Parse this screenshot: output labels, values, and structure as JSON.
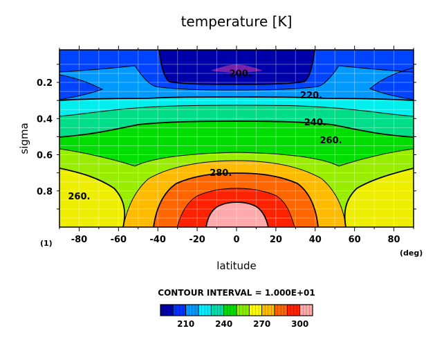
{
  "chart_data": {
    "type": "contour",
    "title": "temperature [K]",
    "xlabel": "latitude",
    "ylabel": "sigma",
    "x_unit": "(deg)",
    "corner_label": "(1)",
    "xlim": [
      -90,
      90
    ],
    "ylim": [
      1.0,
      0.02
    ],
    "x_ticks": [
      -80,
      -60,
      -40,
      -20,
      0,
      20,
      40,
      60,
      80
    ],
    "y_ticks": [
      0.2,
      0.4,
      0.6,
      0.8
    ],
    "contour_interval_text": "CONTOUR INTERVAL = 1.000E+01",
    "levels": [
      200,
      210,
      220,
      230,
      240,
      250,
      260,
      270,
      280,
      290,
      300
    ],
    "contour_labels": [
      {
        "text": "200.",
        "lat": 2,
        "sigma": 0.16
      },
      {
        "text": "220.",
        "lat": 38,
        "sigma": 0.28
      },
      {
        "text": "240.",
        "lat": 40,
        "sigma": 0.43
      },
      {
        "text": "260.",
        "lat": 48,
        "sigma": 0.53
      },
      {
        "text": "280.",
        "lat": -8,
        "sigma": 0.71
      },
      {
        "text": "260.",
        "lat": -80,
        "sigma": 0.84
      }
    ],
    "colorbar": {
      "labels": [
        "210",
        "240",
        "270",
        "300"
      ],
      "colors": [
        "#0000aa",
        "#0033ff",
        "#0099ff",
        "#00eeff",
        "#00ddaa",
        "#00dd00",
        "#88ee00",
        "#ffff00",
        "#ffbb00",
        "#ff6600",
        "#ff2200",
        "#ffaaaa"
      ]
    },
    "grid": true
  }
}
